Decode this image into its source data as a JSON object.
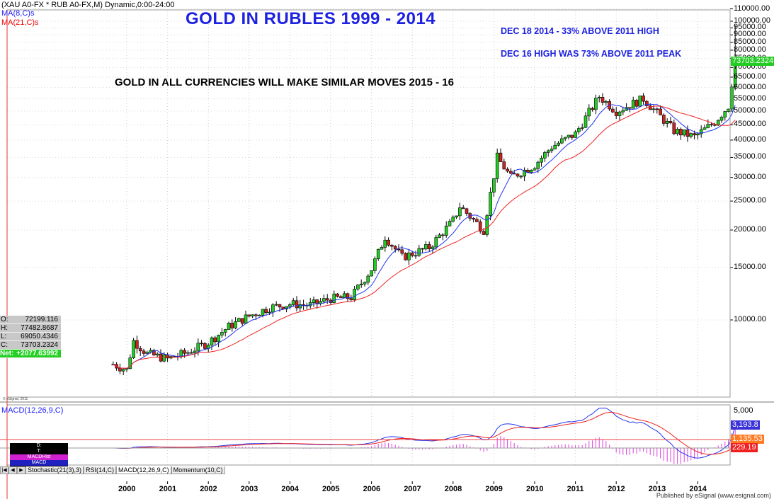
{
  "header": {
    "symbol_line": "(XAU A0-FX * RUB A0-FX,M) Dynamic,0:00-24:00",
    "ma8_label": "MA(8,C)s",
    "ma21_label": "MA(21,C)s"
  },
  "annotations": {
    "title": "GOLD IN RUBLES 1999 - 2014",
    "note1": "DEC 18 2014 - 33% ABOVE 2011 HIGH",
    "note2": "DEC 16 HIGH  WAS 73% ABOVE 2011 PEAK",
    "subtitle": "GOLD IN ALL CURRENCIES WILL MAKE SIMILAR MOVES 2015 - 16"
  },
  "ohlc_box": {
    "open_key": "O:",
    "open": "72199.116",
    "high_key": "H:",
    "high": "77482.8687",
    "low_key": "L:",
    "low": "69050.4346",
    "close_key": "C:",
    "close": "73703.2324",
    "net_key": "Net:",
    "net": "+2077.63992"
  },
  "esignal_small": "© eSignal, 2011",
  "price_axis": {
    "ticks": [
      "110000.00",
      "100000.00",
      "95000.00",
      "90000.00",
      "85000.00",
      "80000.00",
      "75000.00",
      "70000.00",
      "65000.00",
      "60000.00",
      "55000.00",
      "50000.00",
      "45000.00",
      "40000.00",
      "35000.00",
      "30000.00",
      "25000.00",
      "20000.00",
      "15000.00",
      "10000.00"
    ],
    "last_price": "73703.2324",
    "last_color": "#22cc22"
  },
  "macd_panel": {
    "label": "MACD(12,26,9,C)",
    "axis_top": "5,000",
    "macd_value": "3,193.8",
    "signal_value": "1,135.53",
    "hist_value": "229.19",
    "box_lines": [
      "D:",
      "T:",
      "MACDHist",
      "MACD"
    ]
  },
  "time_axis": {
    "labels": [
      "2000",
      "2001",
      "2002",
      "2003",
      "2004",
      "2005",
      "2006",
      "2007",
      "2008",
      "2009",
      "2010",
      "2011",
      "2012",
      "2013",
      "2014"
    ]
  },
  "tabs": [
    "Stochastic(21(3),3)",
    "RSI(14,C)",
    "MACD(12,26,9,C)",
    "Momentum(10,C)"
  ],
  "tab_nav": [
    "|◀",
    "◀",
    "▶"
  ],
  "footer": "Published by eSignal (www.esignal.com)",
  "chart_data": {
    "type": "candlestick",
    "title": "GOLD IN RUBLES 1999 - 2014",
    "xlabel": "",
    "ylabel": "",
    "y_scale": "log",
    "ylim": [
      7000,
      110000
    ],
    "grid": true,
    "overlays": [
      "MA(8,C)s",
      "MA(21,C)s"
    ],
    "key_points": [
      {
        "x": "1999-09",
        "y": 7100
      },
      {
        "x": "2000-01",
        "y": 6800
      },
      {
        "x": "2000-03",
        "y": 8500
      },
      {
        "x": "2000-07",
        "y": 7700
      },
      {
        "x": "2001-01",
        "y": 7400
      },
      {
        "x": "2001-07",
        "y": 7800
      },
      {
        "x": "2002-01",
        "y": 8400
      },
      {
        "x": "2002-07",
        "y": 9500
      },
      {
        "x": "2003-01",
        "y": 10300
      },
      {
        "x": "2003-07",
        "y": 11000
      },
      {
        "x": "2004-01",
        "y": 11300
      },
      {
        "x": "2004-07",
        "y": 11200
      },
      {
        "x": "2005-01",
        "y": 11800
      },
      {
        "x": "2005-07",
        "y": 11900
      },
      {
        "x": "2006-01",
        "y": 14800
      },
      {
        "x": "2006-05",
        "y": 19000
      },
      {
        "x": "2006-10",
        "y": 16200
      },
      {
        "x": "2007-06",
        "y": 17500
      },
      {
        "x": "2008-01",
        "y": 21500
      },
      {
        "x": "2008-03",
        "y": 24000
      },
      {
        "x": "2008-10",
        "y": 20000
      },
      {
        "x": "2009-02",
        "y": 35000
      },
      {
        "x": "2009-06",
        "y": 30000
      },
      {
        "x": "2010-01",
        "y": 33000
      },
      {
        "x": "2010-06",
        "y": 38000
      },
      {
        "x": "2011-01",
        "y": 42000
      },
      {
        "x": "2011-08",
        "y": 56000
      },
      {
        "x": "2012-01",
        "y": 50000
      },
      {
        "x": "2012-09",
        "y": 55000
      },
      {
        "x": "2013-06",
        "y": 43000
      },
      {
        "x": "2013-12",
        "y": 41000
      },
      {
        "x": "2014-06",
        "y": 46000
      },
      {
        "x": "2014-10",
        "y": 52000
      },
      {
        "x": "2014-11",
        "y": 62000
      },
      {
        "x": "2014-12",
        "y": 73703.2324
      }
    ],
    "dec_2014_high": 97000,
    "macd": {
      "label": "MACD(12,26,9,C)",
      "macd": 3193.8,
      "signal": 1135.53,
      "hist": 229.19
    }
  }
}
